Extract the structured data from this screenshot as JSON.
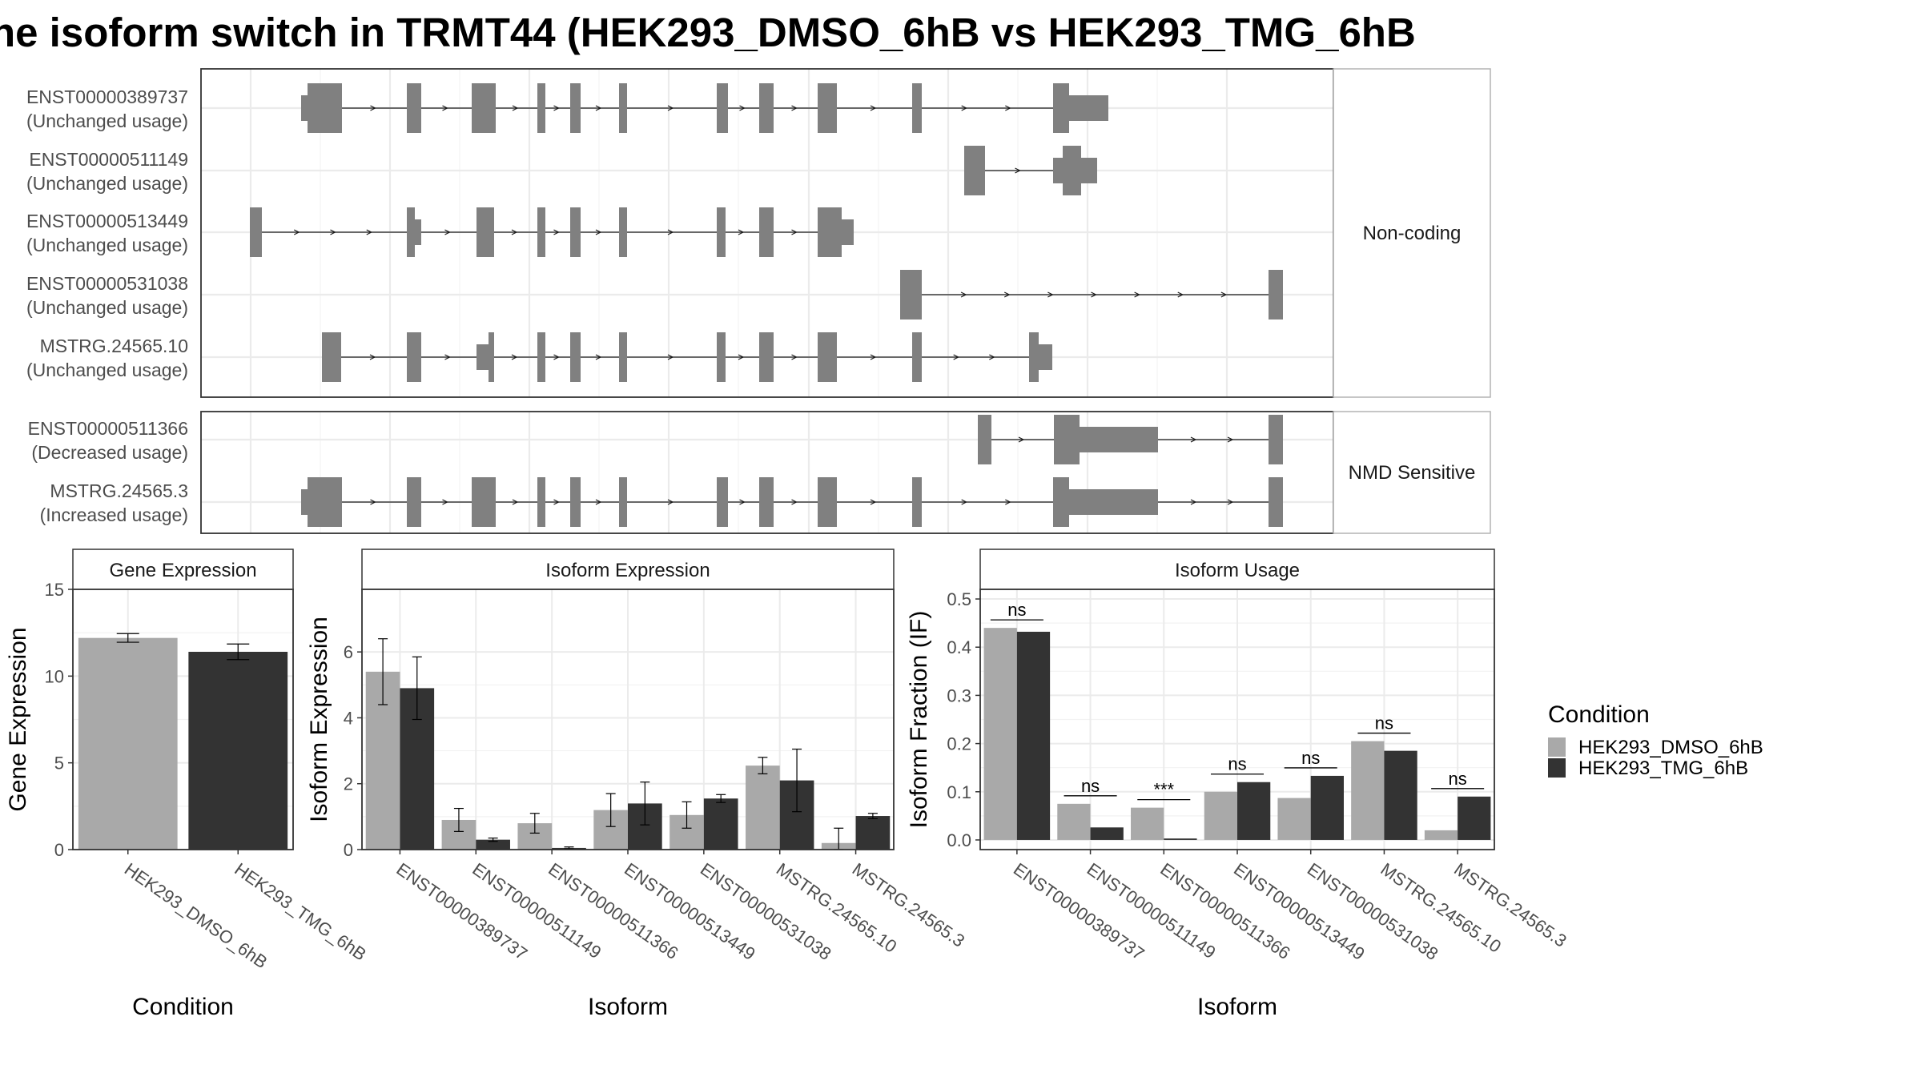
{
  "title": "he isoform switch in TRMT44 (HEK293_DMSO_6hB vs HEK293_TMG_6hB",
  "colors": {
    "dmso": "#a9a9a9",
    "tmg": "#333333",
    "exon": "#808080"
  },
  "structure": {
    "categories": [
      {
        "label": "Non-coding",
        "isoforms": [
          {
            "id": "ENST00000389737",
            "usage": "(Unchanged usage)"
          },
          {
            "id": "ENST00000511149",
            "usage": "(Unchanged usage)"
          },
          {
            "id": "ENST00000513449",
            "usage": "(Unchanged usage)"
          },
          {
            "id": "ENST00000531038",
            "usage": "(Unchanged usage)"
          },
          {
            "id": "MSTRG.24565.10",
            "usage": "(Unchanged usage)"
          }
        ]
      },
      {
        "label": "NMD Sensitive",
        "isoforms": [
          {
            "id": "ENST00000511366",
            "usage": "(Decreased usage)"
          },
          {
            "id": "MSTRG.24565.3",
            "usage": "(Increased usage)"
          }
        ]
      }
    ]
  },
  "chart_data": [
    {
      "type": "bar",
      "title": "Gene Expression",
      "xlabel": "Condition",
      "ylabel": "Gene Expression",
      "ylim": [
        0,
        15
      ],
      "yticks": [
        "0",
        "5",
        "10",
        "15"
      ],
      "categories": [
        "HEK293_DMSO_6hB",
        "HEK293_TMG_6hB"
      ],
      "values": [
        12.2,
        11.4
      ],
      "errors": [
        0.25,
        0.45
      ]
    },
    {
      "type": "bar",
      "title": "Isoform Expression",
      "xlabel": "Isoform",
      "ylabel": "Isoform Expression",
      "ylim": [
        0,
        7.9
      ],
      "yticks": [
        "0",
        "2",
        "4",
        "6"
      ],
      "categories": [
        "ENST00000389737",
        "ENST00000511149",
        "ENST00000511366",
        "ENST00000513449",
        "ENST00000531038",
        "MSTRG.24565.10",
        "MSTRG.24565.3"
      ],
      "series": [
        {
          "name": "HEK293_DMSO_6hB",
          "values": [
            5.4,
            0.9,
            0.8,
            1.2,
            1.05,
            2.55,
            0.2
          ],
          "errors": [
            1.0,
            0.35,
            0.3,
            0.5,
            0.4,
            0.25,
            0.45
          ]
        },
        {
          "name": "HEK293_TMG_6hB",
          "values": [
            4.9,
            0.3,
            0.05,
            1.4,
            1.55,
            2.1,
            1.02
          ],
          "errors": [
            0.95,
            0.05,
            0.03,
            0.65,
            0.12,
            0.95,
            0.08
          ]
        }
      ]
    },
    {
      "type": "bar",
      "title": "Isoform Usage",
      "xlabel": "Isoform",
      "ylabel": "Isoform Fraction (IF)",
      "ylim": [
        -0.02,
        0.52
      ],
      "yticks": [
        "0.0",
        "0.1",
        "0.2",
        "0.3",
        "0.4",
        "0.5"
      ],
      "categories": [
        "ENST00000389737",
        "ENST00000511149",
        "ENST00000511366",
        "ENST00000513449",
        "ENST00000531038",
        "MSTRG.24565.10",
        "MSTRG.24565.3"
      ],
      "series": [
        {
          "name": "HEK293_DMSO_6hB",
          "values": [
            0.44,
            0.075,
            0.067,
            0.1,
            0.087,
            0.205,
            0.02
          ]
        },
        {
          "name": "HEK293_TMG_6hB",
          "values": [
            0.432,
            0.026,
            0.003,
            0.12,
            0.133,
            0.185,
            0.09
          ]
        }
      ],
      "significance": [
        "ns",
        "ns",
        "***",
        "ns",
        "ns",
        "ns",
        "ns"
      ]
    }
  ],
  "legend": {
    "title": "Condition",
    "items": [
      {
        "name": "HEK293_DMSO_6hB",
        "color": "#a9a9a9"
      },
      {
        "name": "HEK293_TMG_6hB",
        "color": "#333333"
      }
    ]
  }
}
